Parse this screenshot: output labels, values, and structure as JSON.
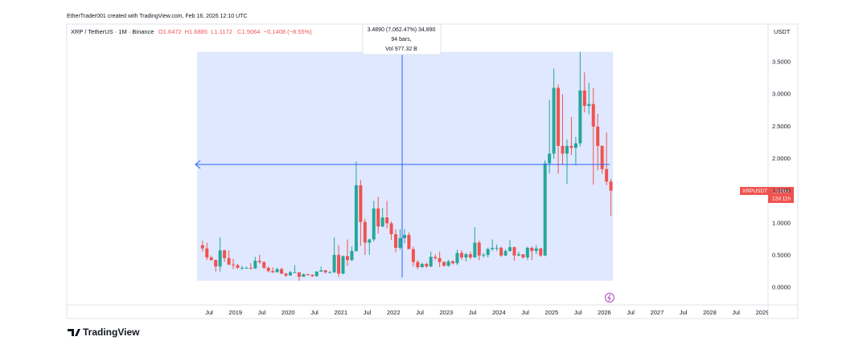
{
  "header": "EtherTrader001 created with TradingView.com, Feb 16, 2026 12:10 UTC",
  "legend": {
    "symbol": "XRP / TetherUS · 1M · Binance",
    "values": [
      "O1.6472",
      "H1.6885",
      "L1.1172",
      "C1.5064",
      "−0.1408 (−8.55%)"
    ]
  },
  "currency": "USDT",
  "symbol_tag": "XRPUSDT",
  "countdown": "12d 11h",
  "measure": {
    "line1": "3.4890 (7,062.47%) 34,890",
    "line2": "94 bars,",
    "line3": "Vol 977.32 B"
  },
  "logo": "TradingView",
  "chart_data": {
    "type": "candlestick",
    "up_color": "#26a69a",
    "down_color": "#ef5350",
    "categories": [
      "2018-05",
      "2018-06",
      "2018-07",
      "2018-08",
      "2018-09",
      "2018-10",
      "2018-11",
      "2018-12",
      "2019-01",
      "2019-02",
      "2019-03",
      "2019-04",
      "2019-05",
      "2019-06",
      "2019-07",
      "2019-08",
      "2019-09",
      "2019-10",
      "2019-11",
      "2019-12",
      "2020-01",
      "2020-02",
      "2020-03",
      "2020-04",
      "2020-05",
      "2020-06",
      "2020-07",
      "2020-08",
      "2020-09",
      "2020-10",
      "2020-11",
      "2020-12",
      "2021-01",
      "2021-02",
      "2021-03",
      "2021-04",
      "2021-05",
      "2021-06",
      "2021-07",
      "2021-08",
      "2021-09",
      "2021-10",
      "2021-11",
      "2021-12",
      "2022-01",
      "2022-02",
      "2022-03",
      "2022-04",
      "2022-05",
      "2022-06",
      "2022-07",
      "2022-08",
      "2022-09",
      "2022-10",
      "2022-11",
      "2022-12",
      "2023-01",
      "2023-02",
      "2023-03",
      "2023-04",
      "2023-05",
      "2023-06",
      "2023-07",
      "2023-08",
      "2023-09",
      "2023-10",
      "2023-11",
      "2023-12",
      "2024-01",
      "2024-02",
      "2024-03",
      "2024-04",
      "2024-05",
      "2024-06",
      "2024-07",
      "2024-08",
      "2024-09",
      "2024-10",
      "2024-11",
      "2024-12",
      "2025-01",
      "2025-02",
      "2025-03",
      "2025-04",
      "2025-05",
      "2025-06",
      "2025-07",
      "2025-08",
      "2025-09",
      "2025-10",
      "2025-11",
      "2025-12",
      "2026-01",
      "2026-02"
    ],
    "open": [
      0.66,
      0.61,
      0.47,
      0.43,
      0.33,
      0.58,
      0.46,
      0.36,
      0.35,
      0.31,
      0.31,
      0.31,
      0.3,
      0.42,
      0.4,
      0.31,
      0.26,
      0.24,
      0.29,
      0.22,
      0.19,
      0.24,
      0.24,
      0.17,
      0.21,
      0.2,
      0.18,
      0.25,
      0.27,
      0.24,
      0.24,
      0.51,
      0.22,
      0.49,
      0.43,
      0.57,
      1.59,
      1.02,
      0.7,
      0.75,
      1.23,
      0.95,
      1.09,
      1.0,
      0.83,
      0.62,
      0.77,
      0.82,
      0.6,
      0.4,
      0.32,
      0.37,
      0.33,
      0.48,
      0.46,
      0.4,
      0.34,
      0.41,
      0.38,
      0.54,
      0.47,
      0.52,
      0.47,
      0.7,
      0.5,
      0.51,
      0.6,
      0.62,
      0.62,
      0.5,
      0.57,
      0.63,
      0.5,
      0.52,
      0.47,
      0.62,
      0.57,
      0.61,
      0.5,
      1.93,
      2.08,
      3.1,
      2.2,
      2.08,
      2.2,
      2.17,
      2.24,
      3.06,
      2.82,
      2.85,
      2.5,
      2.2,
      1.84,
      1.6472
    ],
    "high": [
      0.73,
      0.7,
      0.5,
      0.44,
      0.78,
      0.59,
      0.58,
      0.45,
      0.37,
      0.34,
      0.33,
      0.38,
      0.48,
      0.51,
      0.41,
      0.33,
      0.32,
      0.31,
      0.31,
      0.23,
      0.26,
      0.35,
      0.24,
      0.22,
      0.22,
      0.21,
      0.26,
      0.33,
      0.28,
      0.26,
      0.78,
      0.66,
      0.5,
      0.75,
      0.64,
      1.96,
      1.67,
      1.07,
      0.76,
      1.35,
      1.41,
      1.24,
      1.35,
      1.03,
      0.91,
      0.91,
      0.91,
      0.86,
      0.64,
      0.43,
      0.39,
      0.39,
      0.56,
      0.52,
      0.56,
      0.41,
      0.43,
      0.43,
      0.59,
      0.58,
      0.54,
      0.56,
      0.94,
      0.73,
      0.54,
      0.62,
      0.75,
      0.67,
      0.64,
      0.6,
      0.74,
      0.64,
      0.56,
      0.52,
      0.64,
      0.64,
      0.66,
      0.62,
      1.98,
      2.91,
      3.4,
      3.15,
      3.0,
      2.3,
      2.65,
      2.34,
      3.66,
      3.34,
      3.18,
      3.1,
      2.7,
      2.21,
      2.41,
      1.6885
    ],
    "low": [
      0.56,
      0.43,
      0.42,
      0.25,
      0.25,
      0.4,
      0.35,
      0.29,
      0.29,
      0.28,
      0.3,
      0.28,
      0.29,
      0.37,
      0.29,
      0.24,
      0.23,
      0.24,
      0.21,
      0.17,
      0.19,
      0.23,
      0.11,
      0.17,
      0.19,
      0.17,
      0.17,
      0.25,
      0.22,
      0.23,
      0.23,
      0.17,
      0.21,
      0.34,
      0.41,
      0.56,
      0.65,
      0.51,
      0.51,
      0.72,
      0.84,
      0.94,
      0.92,
      0.74,
      0.55,
      0.59,
      0.69,
      0.6,
      0.33,
      0.29,
      0.31,
      0.31,
      0.32,
      0.43,
      0.32,
      0.33,
      0.33,
      0.36,
      0.35,
      0.43,
      0.41,
      0.44,
      0.47,
      0.43,
      0.47,
      0.47,
      0.57,
      0.57,
      0.48,
      0.49,
      0.56,
      0.42,
      0.49,
      0.45,
      0.43,
      0.43,
      0.52,
      0.48,
      0.49,
      1.77,
      2.0,
      1.77,
      1.9,
      1.61,
      2.06,
      1.9,
      2.19,
      2.72,
      2.69,
      1.6,
      1.82,
      1.77,
      1.59,
      1.1172
    ],
    "close": [
      0.61,
      0.47,
      0.43,
      0.33,
      0.58,
      0.46,
      0.36,
      0.35,
      0.31,
      0.31,
      0.31,
      0.3,
      0.42,
      0.4,
      0.31,
      0.26,
      0.24,
      0.29,
      0.22,
      0.19,
      0.24,
      0.24,
      0.17,
      0.21,
      0.2,
      0.18,
      0.25,
      0.27,
      0.24,
      0.24,
      0.51,
      0.22,
      0.49,
      0.43,
      0.57,
      1.59,
      1.02,
      0.7,
      0.75,
      1.23,
      0.95,
      1.09,
      1.0,
      0.83,
      0.62,
      0.77,
      0.82,
      0.6,
      0.4,
      0.32,
      0.37,
      0.33,
      0.48,
      0.46,
      0.4,
      0.34,
      0.41,
      0.38,
      0.54,
      0.47,
      0.52,
      0.47,
      0.7,
      0.5,
      0.51,
      0.6,
      0.62,
      0.62,
      0.5,
      0.57,
      0.63,
      0.5,
      0.52,
      0.47,
      0.62,
      0.57,
      0.61,
      0.5,
      1.93,
      2.08,
      3.1,
      2.2,
      2.08,
      2.2,
      2.17,
      2.24,
      3.06,
      2.82,
      2.85,
      2.5,
      2.2,
      1.84,
      1.6472,
      1.5064
    ],
    "ylim": [
      -0.24,
      4.09
    ],
    "yticks": [
      {
        "value": 0,
        "label": "0.0000"
      },
      {
        "value": 0.5,
        "label": "0.5000"
      },
      {
        "value": 1,
        "label": "1.0000"
      },
      {
        "value": 1.5,
        "label": "1.5000"
      },
      {
        "value": 2,
        "label": "2.0000"
      },
      {
        "value": 2.5,
        "label": "2.5000"
      },
      {
        "value": 3,
        "label": "3.0000"
      },
      {
        "value": 3.5,
        "label": "3.5000"
      }
    ],
    "xticks": [
      {
        "value": "2018-07",
        "label": "Jul"
      },
      {
        "value": "2019-01",
        "label": "2019"
      },
      {
        "value": "2019-07",
        "label": "Jul"
      },
      {
        "value": "2020-01",
        "label": "2020"
      },
      {
        "value": "2020-07",
        "label": "Jul"
      },
      {
        "value": "2021-01",
        "label": "2021"
      },
      {
        "value": "2021-07",
        "label": "Jul"
      },
      {
        "value": "2022-01",
        "label": "2022"
      },
      {
        "value": "2022-07",
        "label": "Jul"
      },
      {
        "value": "2023-01",
        "label": "2023"
      },
      {
        "value": "2023-07",
        "label": "Jul"
      },
      {
        "value": "2024-01",
        "label": "2024"
      },
      {
        "value": "2024-07",
        "label": "Jul"
      },
      {
        "value": "2025-01",
        "label": "2025"
      },
      {
        "value": "2025-07",
        "label": "Jul"
      },
      {
        "value": "2026-01",
        "label": "2026"
      },
      {
        "value": "2026-07",
        "label": "Jul"
      },
      {
        "value": "2027-01",
        "label": "2027"
      },
      {
        "value": "2027-07",
        "label": "Jul"
      },
      {
        "value": "2028-01",
        "label": "2028"
      },
      {
        "value": "2028-07",
        "label": "Jul"
      },
      {
        "value": "2029-01",
        "label": "2029"
      }
    ]
  }
}
